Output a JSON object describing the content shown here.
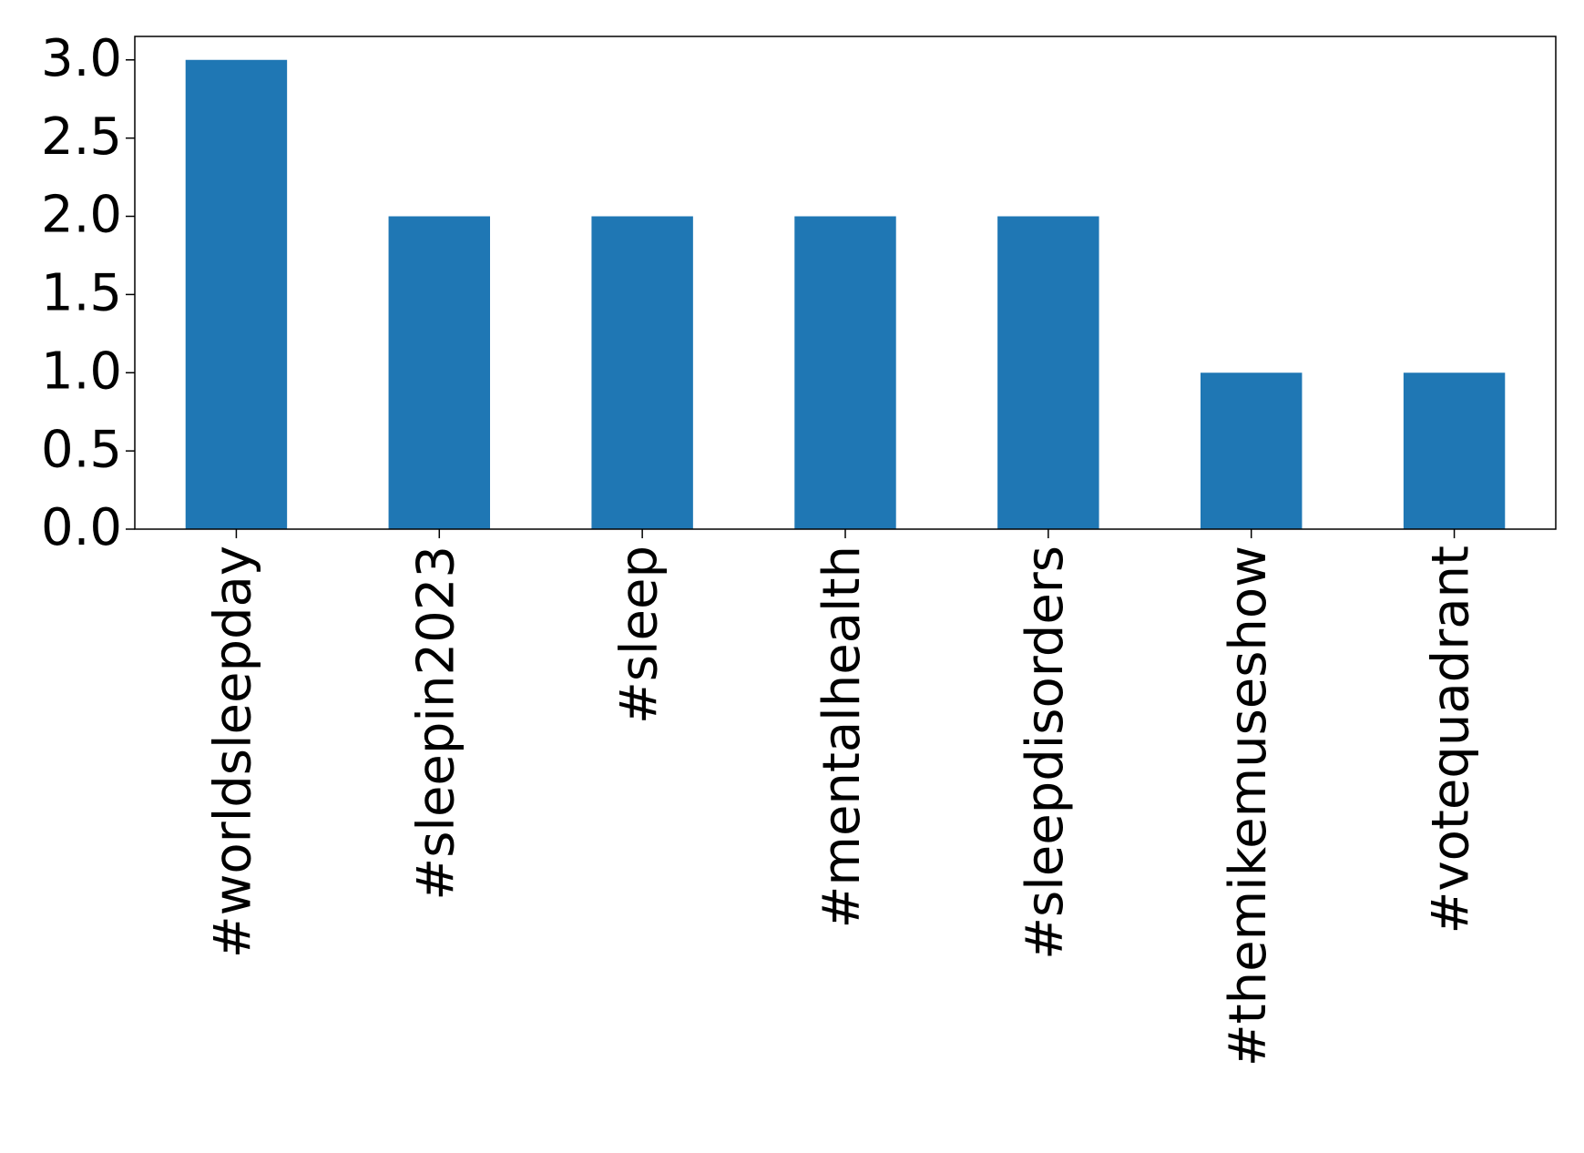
{
  "chart_data": {
    "type": "bar",
    "categories": [
      "#worldsleepday",
      "#sleepin2023",
      "#sleep",
      "#mentalhealth",
      "#sleepdisorders",
      "#themikemuseshow",
      "#votequadrant"
    ],
    "values": [
      3,
      2,
      2,
      2,
      2,
      1,
      1
    ],
    "color": "#1f77b4",
    "ylim": [
      0,
      3.15
    ],
    "yticks": [
      {
        "value": 0,
        "label": "0.0"
      },
      {
        "value": 0.5,
        "label": "0.5"
      },
      {
        "value": 1,
        "label": "1.0"
      },
      {
        "value": 1.5,
        "label": "1.5"
      },
      {
        "value": 2,
        "label": "2.0"
      },
      {
        "value": 2.5,
        "label": "2.5"
      },
      {
        "value": 3,
        "label": "3.0"
      }
    ],
    "grid": false
  }
}
